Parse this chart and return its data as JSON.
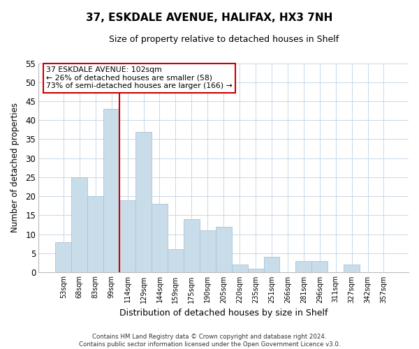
{
  "title": "37, ESKDALE AVENUE, HALIFAX, HX3 7NH",
  "subtitle": "Size of property relative to detached houses in Shelf",
  "xlabel": "Distribution of detached houses by size in Shelf",
  "ylabel": "Number of detached properties",
  "bar_labels": [
    "53sqm",
    "68sqm",
    "83sqm",
    "99sqm",
    "114sqm",
    "129sqm",
    "144sqm",
    "159sqm",
    "175sqm",
    "190sqm",
    "205sqm",
    "220sqm",
    "235sqm",
    "251sqm",
    "266sqm",
    "281sqm",
    "296sqm",
    "311sqm",
    "327sqm",
    "342sqm",
    "357sqm"
  ],
  "bar_values": [
    8,
    25,
    20,
    43,
    19,
    37,
    18,
    6,
    14,
    11,
    12,
    2,
    1,
    4,
    0,
    3,
    3,
    0,
    2,
    0,
    0
  ],
  "bar_color": "#c9dcea",
  "bar_edge_color": "#a8c4d8",
  "vline_color": "#cc0000",
  "ylim": [
    0,
    55
  ],
  "yticks": [
    0,
    5,
    10,
    15,
    20,
    25,
    30,
    35,
    40,
    45,
    50,
    55
  ],
  "annotation_title": "37 ESKDALE AVENUE: 102sqm",
  "annotation_line1": "← 26% of detached houses are smaller (58)",
  "annotation_line2": "73% of semi-detached houses are larger (166) →",
  "annotation_box_color": "#ffffff",
  "annotation_border_color": "#cc0000",
  "footnote1": "Contains HM Land Registry data © Crown copyright and database right 2024.",
  "footnote2": "Contains public sector information licensed under the Open Government Licence v3.0.",
  "bg_color": "#ffffff",
  "plot_bg_color": "#ffffff",
  "grid_color": "#c8d8e8"
}
